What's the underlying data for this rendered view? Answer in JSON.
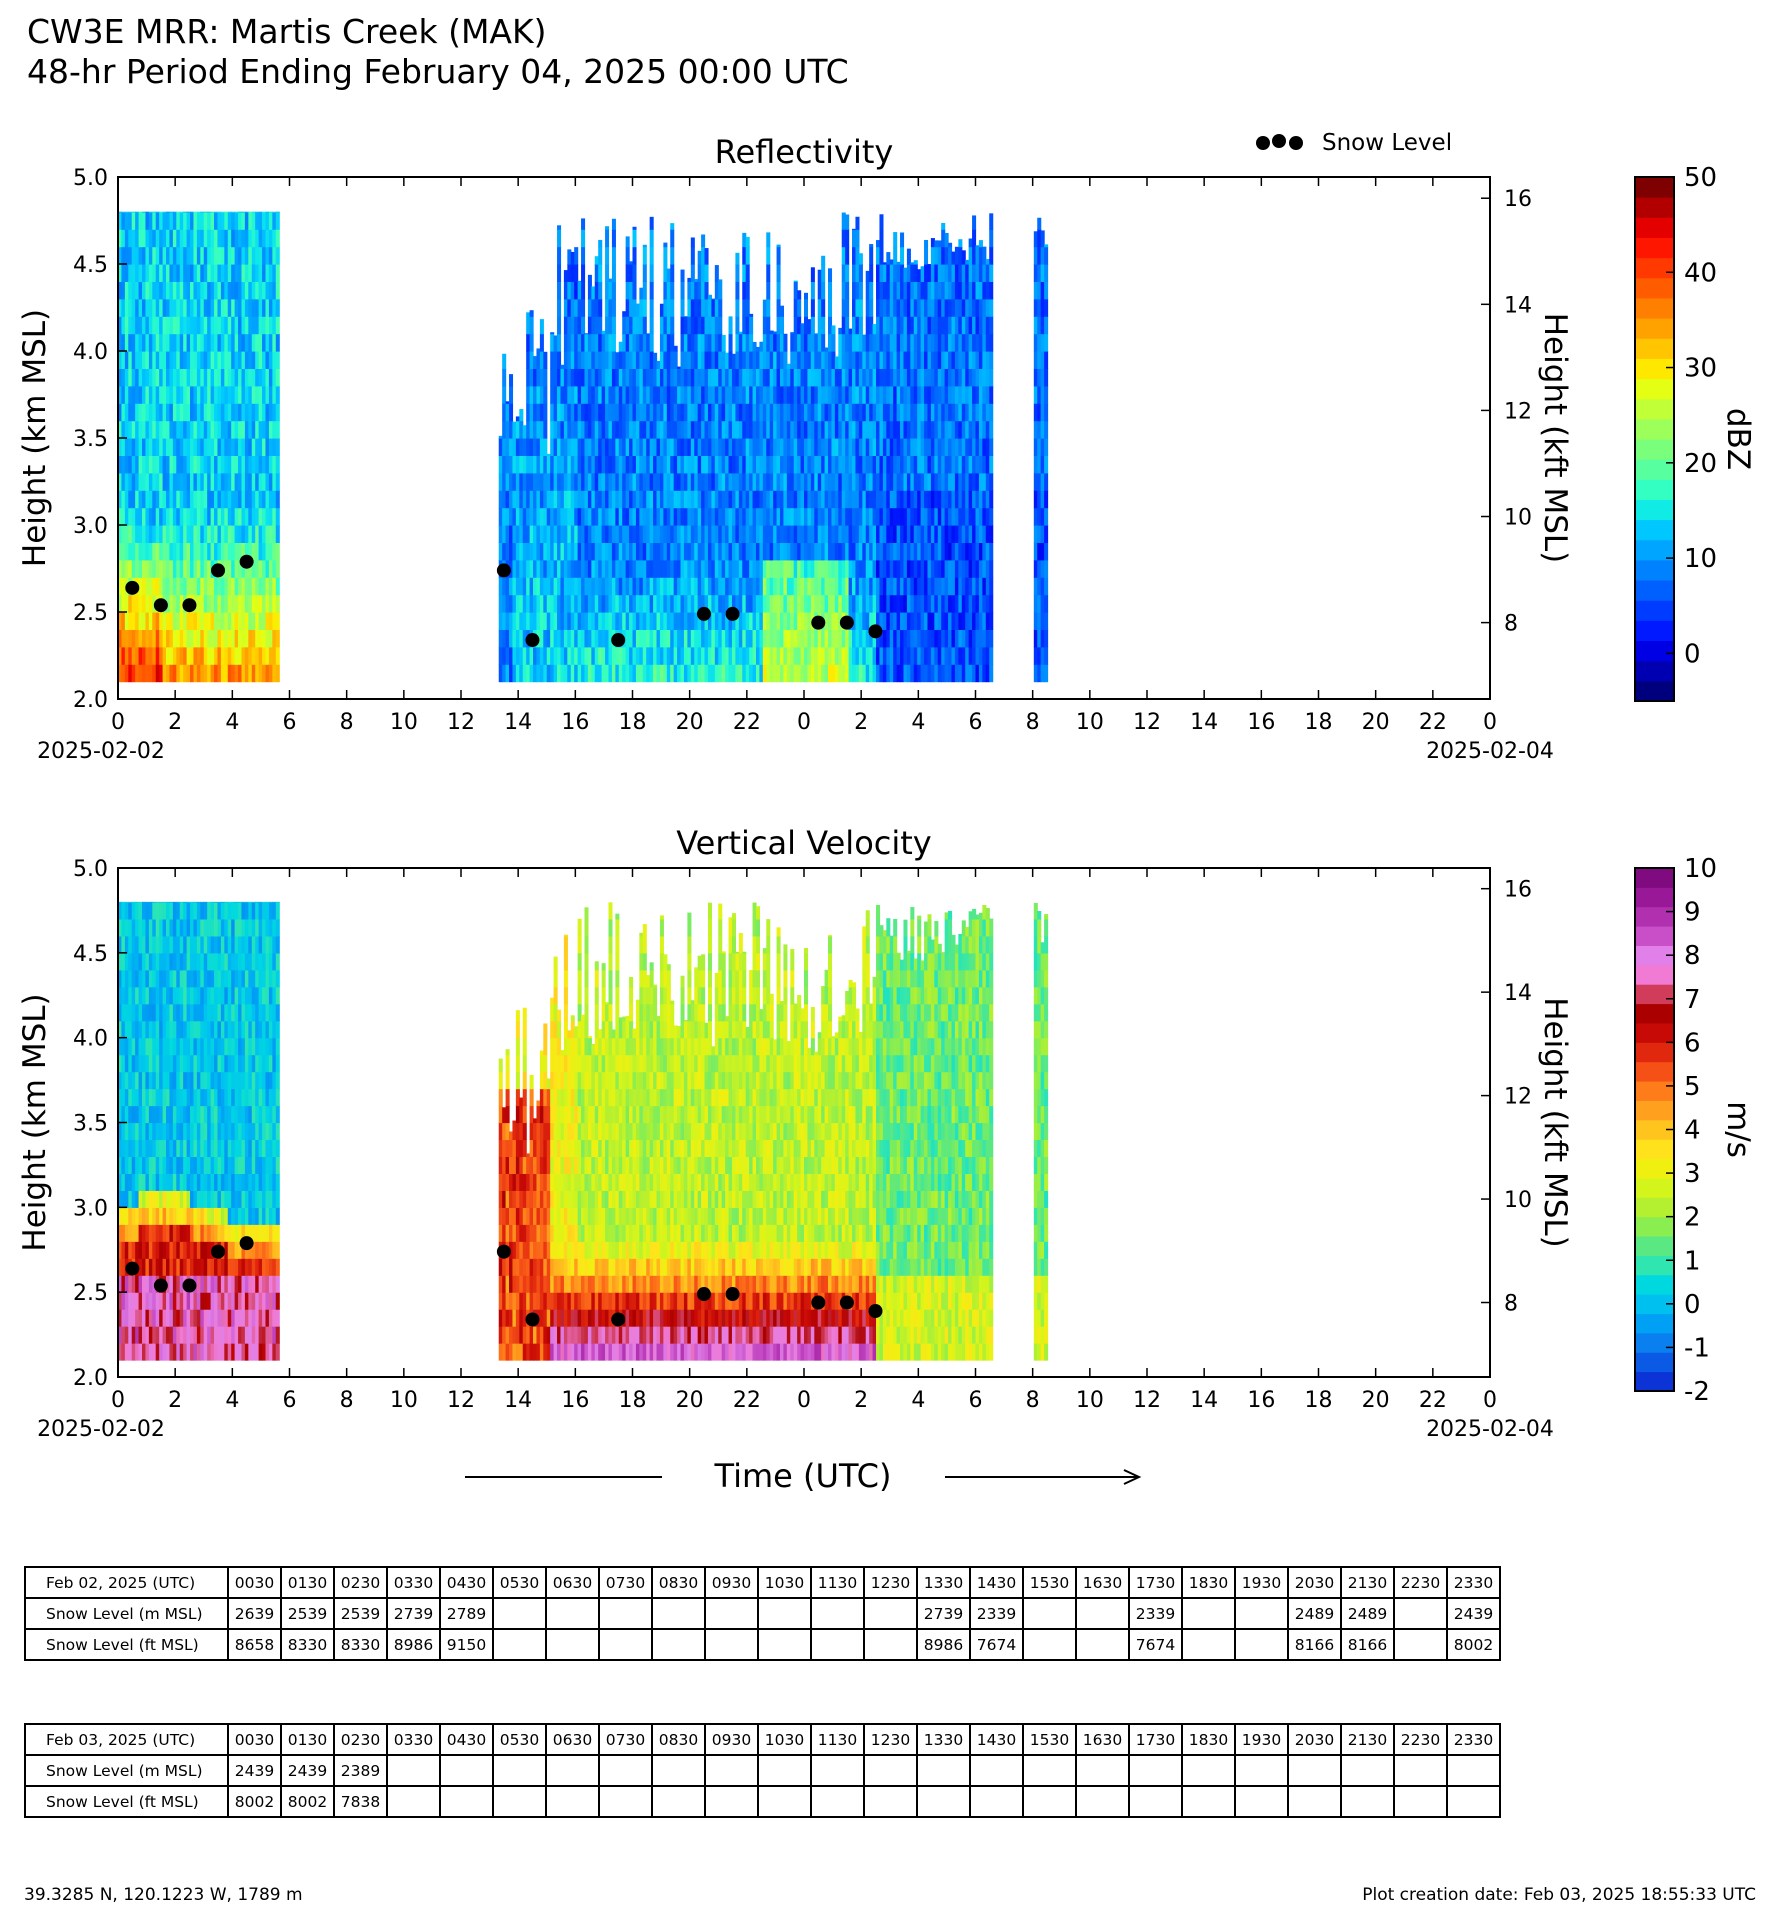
{
  "header": {
    "title_line1": "CW3E MRR: Martis Creek (MAK)",
    "title_line2": "48-hr Period Ending February 04, 2025 00:00 UTC"
  },
  "x_axis": {
    "ticks": [
      "0",
      "2",
      "4",
      "6",
      "8",
      "10",
      "12",
      "14",
      "16",
      "18",
      "20",
      "22",
      "0",
      "2",
      "4",
      "6",
      "8",
      "10",
      "12",
      "14",
      "16",
      "18",
      "20",
      "22",
      "0"
    ],
    "start_date": "2025-02-02",
    "end_date": "2025-02-04",
    "xlabel": "Time (UTC)"
  },
  "left_axis": {
    "label": "Height (km MSL)",
    "ticks": [
      "2.0",
      "2.5",
      "3.0",
      "3.5",
      "4.0",
      "4.5",
      "5.0"
    ]
  },
  "right_axis": {
    "label": "Height (kft MSL)",
    "ticks": [
      "8",
      "10",
      "12",
      "14",
      "16"
    ]
  },
  "legend": {
    "snow_level_label": "Snow Level"
  },
  "colorbars": {
    "reflectivity": {
      "label": "dBZ",
      "ticks": [
        "0",
        "10",
        "20",
        "30",
        "40",
        "50"
      ],
      "colors": [
        "#00007f",
        "#0000b2",
        "#0000e5",
        "#0019ff",
        "#003cff",
        "#005fff",
        "#0082ff",
        "#00a5ff",
        "#00c8ff",
        "#11ebe5",
        "#34ffc2",
        "#57ff9f",
        "#7aff7c",
        "#9dff5a",
        "#c1ff36",
        "#e4ff13",
        "#ffe800",
        "#ffc500",
        "#ffa200",
        "#ff7f00",
        "#ff5c00",
        "#ff3900",
        "#ff1600",
        "#e50000",
        "#b20000",
        "#7f0000"
      ]
    },
    "velocity": {
      "label": "m/s",
      "ticks": [
        "-2",
        "-1",
        "0",
        "1",
        "2",
        "3",
        "4",
        "5",
        "6",
        "7",
        "8",
        "9",
        "10"
      ],
      "colors": [
        "#0b33d6",
        "#0a5ae6",
        "#0a7ff0",
        "#00a0f5",
        "#00c0f0",
        "#00d8e0",
        "#30e6b0",
        "#5ae882",
        "#8aee50",
        "#b4f030",
        "#d4f51c",
        "#f0f010",
        "#ffe21c",
        "#ffc41e",
        "#ffa01e",
        "#ff7c1a",
        "#f55016",
        "#e0280e",
        "#c80a06",
        "#aa0000",
        "#d03c5a",
        "#f07ad4",
        "#e080e8",
        "#c84fc8",
        "#b030b0",
        "#981898",
        "#800a80"
      ]
    }
  },
  "chart_data": [
    {
      "type": "heatmap",
      "title": "Reflectivity",
      "variable": "Reflectivity",
      "units": "dBZ",
      "color_range": [
        -5,
        50
      ],
      "xlim": [
        0,
        48
      ],
      "ylim": [
        2.0,
        5.0
      ],
      "y2lim": [
        6.56,
        16.4
      ],
      "data_extent_km": [
        2.1,
        4.8
      ],
      "echo_periods_hours": [
        [
          0,
          5.5
        ],
        [
          13.3,
          26.5
        ],
        [
          26.5,
          30.5
        ],
        [
          32.0,
          32.5
        ]
      ],
      "snow_level": {
        "name": "Snow Level",
        "x_hours": [
          0.5,
          1.5,
          2.5,
          3.5,
          4.5,
          13.5,
          14.5,
          17.5,
          20.5,
          21.5,
          24.5,
          25.5,
          26.5
        ],
        "y_km": [
          2.639,
          2.539,
          2.539,
          2.739,
          2.789,
          2.739,
          2.339,
          2.339,
          2.489,
          2.489,
          2.439,
          2.439,
          2.389
        ]
      }
    },
    {
      "type": "heatmap",
      "title": "Vertical Velocity",
      "variable": "Vertical Velocity",
      "units": "m/s",
      "color_range": [
        -2,
        10
      ],
      "xlim": [
        0,
        48
      ],
      "ylim": [
        2.0,
        5.0
      ],
      "y2lim": [
        6.56,
        16.4
      ],
      "data_extent_km": [
        2.1,
        4.8
      ],
      "echo_periods_hours": [
        [
          0,
          5.5
        ],
        [
          13.3,
          26.5
        ],
        [
          26.5,
          30.5
        ],
        [
          32.0,
          32.5
        ]
      ],
      "snow_level": {
        "name": "Snow Level",
        "x_hours": [
          0.5,
          1.5,
          2.5,
          3.5,
          4.5,
          13.5,
          14.5,
          17.5,
          20.5,
          21.5,
          24.5,
          25.5,
          26.5
        ],
        "y_km": [
          2.639,
          2.539,
          2.539,
          2.739,
          2.789,
          2.739,
          2.339,
          2.339,
          2.489,
          2.489,
          2.439,
          2.439,
          2.389
        ]
      }
    },
    {
      "type": "table",
      "title": "Feb 02, 2025 (UTC)",
      "columns": [
        "0030",
        "0130",
        "0230",
        "0330",
        "0430",
        "0530",
        "0630",
        "0730",
        "0830",
        "0930",
        "1030",
        "1130",
        "1230",
        "1330",
        "1430",
        "1530",
        "1630",
        "1730",
        "1830",
        "1930",
        "2030",
        "2130",
        "2230",
        "2330"
      ],
      "rows": [
        {
          "label": "Snow Level (m MSL)",
          "values": [
            "2639",
            "2539",
            "2539",
            "2739",
            "2789",
            "",
            "",
            "",
            "",
            "",
            "",
            "",
            "",
            "2739",
            "2339",
            "",
            "",
            "2339",
            "",
            "",
            "2489",
            "2489",
            "",
            "2439"
          ]
        },
        {
          "label": "Snow Level (ft MSL)",
          "values": [
            "8658",
            "8330",
            "8330",
            "8986",
            "9150",
            "",
            "",
            "",
            "",
            "",
            "",
            "",
            "",
            "8986",
            "7674",
            "",
            "",
            "7674",
            "",
            "",
            "8166",
            "8166",
            "",
            "8002"
          ]
        }
      ]
    },
    {
      "type": "table",
      "title": "Feb 03, 2025 (UTC)",
      "columns": [
        "0030",
        "0130",
        "0230",
        "0330",
        "0430",
        "0530",
        "0630",
        "0730",
        "0830",
        "0930",
        "1030",
        "1130",
        "1230",
        "1330",
        "1430",
        "1530",
        "1630",
        "1730",
        "1830",
        "1930",
        "2030",
        "2130",
        "2230",
        "2330"
      ],
      "rows": [
        {
          "label": "Snow Level (m MSL)",
          "values": [
            "2439",
            "2439",
            "2389",
            "",
            "",
            "",
            "",
            "",
            "",
            "",
            "",
            "",
            "",
            "",
            "",
            "",
            "",
            "",
            "",
            "",
            "",
            "",
            "",
            ""
          ]
        },
        {
          "label": "Snow Level (ft MSL)",
          "values": [
            "8002",
            "8002",
            "7838",
            "",
            "",
            "",
            "",
            "",
            "",
            "",
            "",
            "",
            "",
            "",
            "",
            "",
            "",
            "",
            "",
            "",
            "",
            "",
            "",
            ""
          ]
        }
      ]
    }
  ],
  "footer": {
    "coordinates": "39.3285 N, 120.1223 W, 1789 m",
    "creation_date": "Plot creation date: Feb 03, 2025 18:55:33 UTC"
  }
}
